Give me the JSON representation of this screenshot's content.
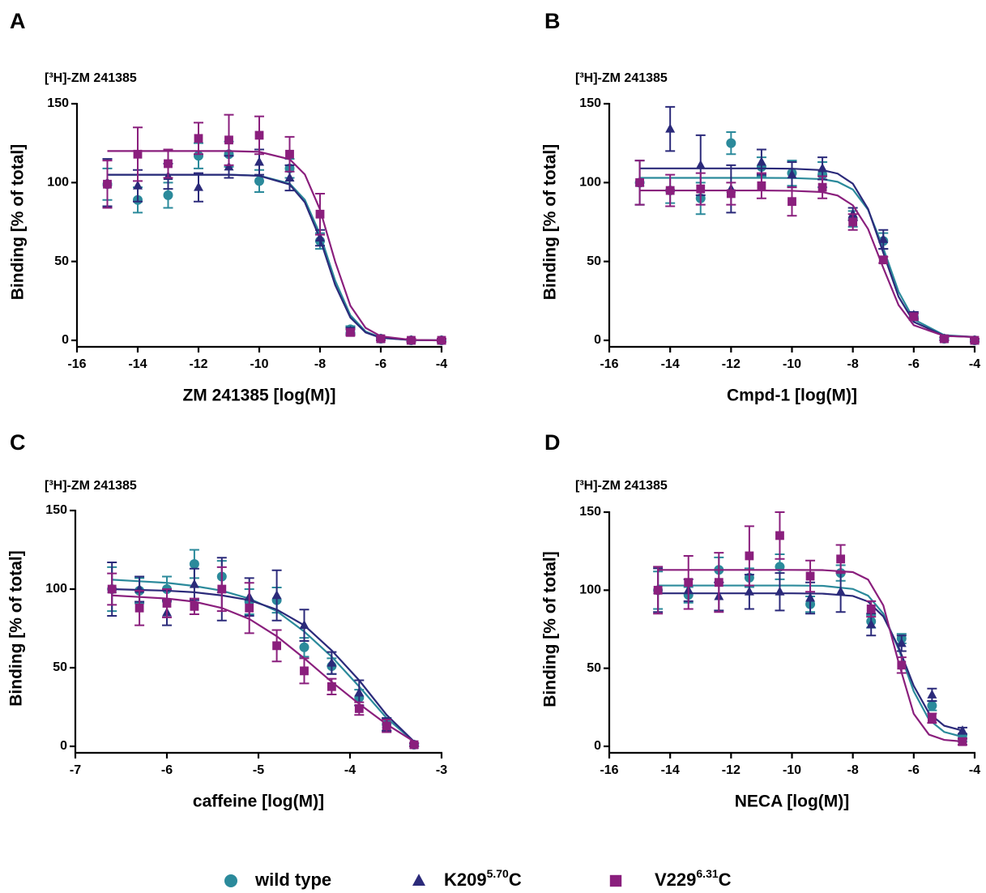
{
  "chart_data": [
    {
      "type": "scatter",
      "label": "A",
      "subtitle": "[³H]-ZM 241385",
      "y_label": "Binding [% of total]",
      "x_label": "ZM 241385 [log(M)]",
      "xlim": [
        -16,
        -4
      ],
      "xticks": [
        -16,
        -14,
        -12,
        -10,
        -8,
        -6,
        -4
      ],
      "ylim": [
        0,
        150
      ],
      "yticks": [
        0,
        50,
        100,
        150
      ],
      "x": [
        -15,
        -14,
        -13,
        -12,
        -11,
        -10,
        -9,
        -8,
        -7,
        -6,
        -5,
        -4
      ],
      "fit_x": [
        -15,
        -14,
        -13,
        -12,
        -11,
        -10,
        -9,
        -8.5,
        -8,
        -7.5,
        -7,
        -6.5,
        -6,
        -5,
        -4
      ],
      "series": [
        {
          "name": "wild type",
          "color": "#2b8a9b",
          "marker": "circle",
          "values": [
            99,
            89,
            92,
            117,
            118,
            101,
            109,
            63,
            7,
            1,
            0,
            0
          ],
          "errors": [
            10,
            8,
            8,
            8,
            8,
            7,
            6,
            5,
            2,
            1,
            1,
            1
          ],
          "fit": [
            105,
            105,
            105,
            105,
            105,
            104.4,
            99.4,
            89.1,
            67.2,
            37.8,
            15.9,
            5.6,
            1.8,
            0.2,
            0
          ]
        },
        {
          "name": "K209",
          "name_superscript": "5.70",
          "name_suffix": "C",
          "color": "#2b2a7a",
          "marker": "triangle",
          "values": [
            100,
            98,
            104,
            97,
            110,
            113,
            103,
            65,
            6,
            1,
            0,
            0
          ],
          "errors": [
            15,
            10,
            8,
            9,
            7,
            8,
            8,
            5,
            2,
            1,
            1,
            1
          ],
          "fit": [
            105,
            105,
            105,
            105,
            105,
            104.3,
            98.8,
            87.5,
            64.4,
            35,
            14.4,
            5,
            1.6,
            0.2,
            0
          ]
        },
        {
          "name": "V229",
          "name_superscript": "6.31",
          "name_suffix": "C",
          "color": "#8a1f7d",
          "marker": "square",
          "values": [
            99,
            118,
            112,
            128,
            127,
            130,
            118,
            80,
            5,
            1,
            0,
            0
          ],
          "errors": [
            15,
            17,
            9,
            10,
            16,
            12,
            11,
            13,
            2,
            1,
            1,
            1
          ],
          "fit": [
            120,
            120,
            120,
            120,
            120,
            119.5,
            114.8,
            105.2,
            82.9,
            49.8,
            21.9,
            7.9,
            2.6,
            0.3,
            0
          ]
        }
      ]
    },
    {
      "type": "scatter",
      "label": "B",
      "subtitle": "[³H]-ZM 241385",
      "y_label": "Binding [% of total]",
      "x_label": "Cmpd-1 [log(M)]",
      "xlim": [
        -16,
        -4
      ],
      "xticks": [
        -16,
        -14,
        -12,
        -10,
        -8,
        -6,
        -4
      ],
      "ylim": [
        0,
        150
      ],
      "yticks": [
        0,
        50,
        100,
        150
      ],
      "x": [
        -15,
        -14,
        -13,
        -12,
        -11,
        -10,
        -9,
        -8,
        -7,
        -6,
        -5,
        -4
      ],
      "fit_x": [
        -15,
        -14,
        -13,
        -12,
        -11,
        -10,
        -9,
        -8.5,
        -8,
        -7.5,
        -7,
        -6.5,
        -6,
        -5,
        -4
      ],
      "series": [
        {
          "name": "wild type",
          "color": "#2b8a9b",
          "marker": "circle",
          "values": [
            100,
            95,
            90,
            125,
            110,
            106,
            105,
            77,
            63,
            15,
            1,
            0
          ],
          "errors": [
            14,
            8,
            10,
            7,
            6,
            8,
            8,
            5,
            5,
            2,
            1,
            1
          ],
          "fit": [
            103,
            103,
            103,
            103,
            103,
            102.9,
            102.2,
            100.5,
            95.6,
            82.8,
            58.4,
            30.9,
            13.3,
            3.3,
            2.1
          ]
        },
        {
          "name": "K209",
          "name_superscript": "5.70",
          "name_suffix": "C",
          "color": "#2b2a7a",
          "marker": "triangle",
          "values": [
            100,
            134,
            111,
            96,
            113,
            105,
            109,
            80,
            64,
            16,
            1,
            0
          ],
          "errors": [
            14,
            14,
            19,
            15,
            8,
            8,
            7,
            4,
            6,
            2,
            1,
            1
          ],
          "fit": [
            109,
            109,
            109,
            109,
            109,
            108.8,
            107.9,
            105.7,
            99.3,
            83.3,
            55.5,
            27.7,
            11.7,
            2.9,
            2.1
          ]
        },
        {
          "name": "V229",
          "name_superscript": "6.31",
          "name_suffix": "C",
          "color": "#8a1f7d",
          "marker": "square",
          "values": [
            100,
            95,
            96,
            93,
            98,
            88,
            97,
            75,
            51,
            15,
            1,
            0
          ],
          "errors": [
            14,
            10,
            10,
            7,
            8,
            9,
            7,
            5,
            2,
            2,
            1,
            1
          ],
          "fit": [
            95,
            95,
            95,
            95,
            95,
            94.8,
            94,
            91.8,
            85.6,
            70.6,
            45.9,
            22.4,
            9.6,
            2.8,
            2.1
          ]
        }
      ]
    },
    {
      "type": "scatter",
      "label": "C",
      "subtitle": "[³H]-ZM 241385",
      "y_label": "Binding [% of total]",
      "x_label": "caffeine [log(M)]",
      "xlim": [
        -7,
        -3
      ],
      "xticks": [
        -7,
        -6,
        -5,
        -4,
        -3
      ],
      "ylim": [
        0,
        150
      ],
      "yticks": [
        0,
        50,
        100,
        150
      ],
      "x": [
        -6.6,
        -6.3,
        -6,
        -5.7,
        -5.4,
        -5.1,
        -4.8,
        -4.5,
        -4.2,
        -3.9,
        -3.6,
        -3.3
      ],
      "fit_x": [
        -6.6,
        -6.3,
        -6,
        -5.7,
        -5.4,
        -5.1,
        -4.8,
        -4.5,
        -4.2,
        -3.9,
        -3.6,
        -3.3
      ],
      "series": [
        {
          "name": "wild type",
          "color": "#2b8a9b",
          "marker": "circle",
          "values": [
            100,
            99,
            100,
            116,
            108,
            92,
            93,
            63,
            51,
            31,
            14,
            1
          ],
          "errors": [
            14,
            8,
            8,
            9,
            10,
            8,
            8,
            6,
            5,
            5,
            4,
            1
          ],
          "fit": [
            106,
            105,
            104,
            102,
            99,
            94,
            86,
            73,
            57,
            38,
            18,
            3
          ]
        },
        {
          "name": "K209",
          "name_superscript": "5.70",
          "name_suffix": "C",
          "color": "#2b2a7a",
          "marker": "triangle",
          "values": [
            100,
            100,
            85,
            103,
            100,
            95,
            96,
            77,
            53,
            34,
            14,
            1
          ],
          "errors": [
            17,
            8,
            8,
            10,
            20,
            12,
            16,
            10,
            7,
            8,
            4,
            1
          ],
          "fit": [
            100,
            99.5,
            99,
            98,
            96,
            93,
            87,
            77,
            61,
            42,
            20,
            3
          ]
        },
        {
          "name": "V229",
          "name_superscript": "6.31",
          "name_suffix": "C",
          "color": "#8a1f7d",
          "marker": "square",
          "values": [
            100,
            88,
            91,
            89,
            100,
            88,
            64,
            48,
            38,
            24,
            13,
            1
          ],
          "errors": [
            10,
            11,
            9,
            5,
            14,
            16,
            10,
            8,
            5,
            4,
            4,
            1
          ],
          "fit": [
            96,
            95,
            94,
            92,
            88,
            81,
            70,
            56,
            41,
            27,
            14,
            3
          ]
        }
      ]
    },
    {
      "type": "scatter",
      "label": "D",
      "subtitle": "[³H]-ZM 241385",
      "y_label": "Binding [% of total]",
      "x_label": "NECA [log(M)]",
      "xlim": [
        -16,
        -4
      ],
      "xticks": [
        -16,
        -14,
        -12,
        -10,
        -8,
        -6,
        -4
      ],
      "ylim": [
        0,
        150
      ],
      "yticks": [
        0,
        50,
        100,
        150
      ],
      "x": [
        -14.4,
        -13.4,
        -12.4,
        -11.4,
        -10.4,
        -9.4,
        -8.4,
        -7.4,
        -6.4,
        -5.4,
        -4.4
      ],
      "fit_x": [
        -14.4,
        -13,
        -12,
        -11,
        -10,
        -9,
        -8,
        -7.5,
        -7,
        -6.5,
        -6,
        -5.5,
        -5,
        -4.4
      ],
      "series": [
        {
          "name": "wild type",
          "color": "#2b8a9b",
          "marker": "circle",
          "values": [
            100,
            97,
            113,
            108,
            115,
            91,
            111,
            80,
            69,
            26,
            5
          ],
          "errors": [
            12,
            5,
            8,
            6,
            8,
            5,
            5,
            4,
            3,
            3,
            2
          ],
          "fit": [
            103,
            103,
            103,
            103,
            103,
            102.8,
            100.8,
            96.5,
            85,
            62.4,
            35.2,
            17.1,
            9.2,
            6.1
          ]
        },
        {
          "name": "K209",
          "name_superscript": "5.70",
          "name_suffix": "C",
          "color": "#2b2a7a",
          "marker": "triangle",
          "values": [
            100,
            100,
            96,
            99,
            99,
            95,
            99,
            78,
            66,
            33,
            10
          ],
          "errors": [
            14,
            7,
            9,
            11,
            12,
            10,
            13,
            7,
            5,
            4,
            2
          ],
          "fit": [
            98,
            98,
            98,
            98,
            98,
            97.8,
            96.3,
            92.7,
            83.2,
            63.6,
            38.7,
            21.2,
            13.2,
            10.1
          ]
        },
        {
          "name": "V229",
          "name_superscript": "6.31",
          "name_suffix": "C",
          "color": "#8a1f7d",
          "marker": "square",
          "values": [
            100,
            105,
            105,
            122,
            135,
            109,
            120,
            88,
            52,
            18,
            3
          ],
          "errors": [
            15,
            17,
            19,
            19,
            15,
            10,
            9,
            5,
            5,
            3,
            2
          ],
          "fit": [
            113,
            113,
            113,
            113,
            113,
            112.9,
            111.6,
            106.8,
            90.3,
            53.9,
            20.8,
            7.5,
            4.1,
            3.1
          ]
        }
      ]
    }
  ]
}
